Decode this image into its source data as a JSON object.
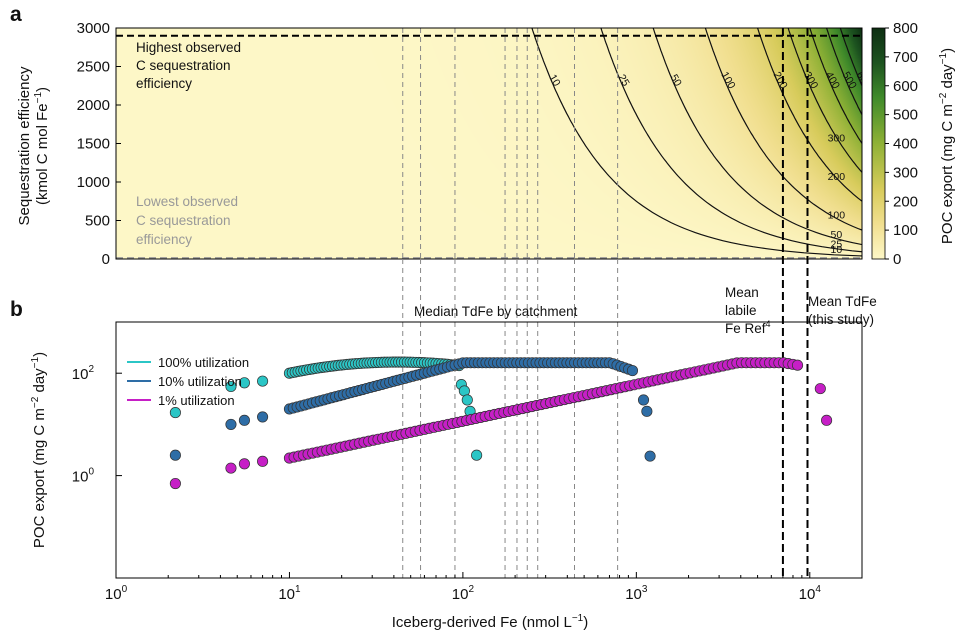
{
  "chart_data": [
    {
      "panel": "a",
      "type": "heatmap",
      "ylabel_line1": "Sequestration efficiency",
      "ylabel_line2": "(kmol C mol Fe",
      "ylabel_sup": "−1",
      "ylabel_end": ")",
      "ylim": [
        0,
        3000
      ],
      "yticks": [
        0,
        500,
        1000,
        1500,
        2000,
        2500,
        3000
      ],
      "xscale": "log",
      "xlim": [
        1,
        20000
      ],
      "colorbar": {
        "label": "POC export (mg C m",
        "label_sup1": "−2",
        "label_mid": " day",
        "label_sup2": "−1",
        "label_end": ")",
        "ticks": [
          0,
          100,
          200,
          300,
          400,
          500,
          600,
          700,
          800
        ],
        "range": [
          0,
          800
        ],
        "colors": [
          "#fdf7c7",
          "#f1df90",
          "#c7c64a",
          "#6f9f2a",
          "#2e6b22",
          "#0d2e12"
        ]
      },
      "contour_levels": [
        10,
        25,
        50,
        100,
        200,
        300,
        400,
        500,
        600
      ],
      "annotations": {
        "highest_line1": "Highest observed",
        "highest_line2": "C sequestration",
        "highest_line3": "efficiency",
        "lowest_line1": "Lowest observed",
        "lowest_line2": "C sequestration",
        "lowest_line3": "efficiency"
      },
      "hlines": [
        2900,
        12
      ]
    },
    {
      "panel": "b",
      "type": "scatter",
      "xlabel": "Iceberg-derived Fe (nmol L",
      "xlabel_sup": "−1",
      "xlabel_end": ")",
      "ylabel": "POC export (mg C m",
      "ylabel_sup1": "−2",
      "ylabel_mid": " day",
      "ylabel_sup2": "−1",
      "ylabel_end": ")",
      "xscale": "log",
      "yscale": "log",
      "xlim": [
        1,
        20000
      ],
      "ylim": [
        0.01,
        1000
      ],
      "xticks": [
        {
          "base": "10",
          "exp": "0"
        },
        {
          "base": "10",
          "exp": "1"
        },
        {
          "base": "10",
          "exp": "2"
        },
        {
          "base": "10",
          "exp": "3"
        },
        {
          "base": "10",
          "exp": "4"
        }
      ],
      "yticks": [
        {
          "base": "10",
          "exp": "0"
        },
        {
          "base": "10",
          "exp": "2"
        }
      ],
      "series": [
        {
          "name": "100% utilization",
          "color": "#2bc6c6"
        },
        {
          "name": "10% utilization",
          "color": "#2e6da6"
        },
        {
          "name": "1% utilization",
          "color": "#c61fc6"
        }
      ],
      "catchment_tdfe": [
        45,
        57,
        90,
        175,
        205,
        235,
        270,
        440,
        780
      ],
      "mean_labile_fe_ref": 7000,
      "mean_tdfe_study": 9700,
      "annotations": {
        "median_label": "Median TdFe by catchment",
        "labile_line1": "Mean",
        "labile_line2": "labile",
        "labile_line3": "Fe Ref",
        "labile_sup": "4",
        "study_line1": "Mean TdFe",
        "study_line2": "(this study)"
      }
    }
  ]
}
